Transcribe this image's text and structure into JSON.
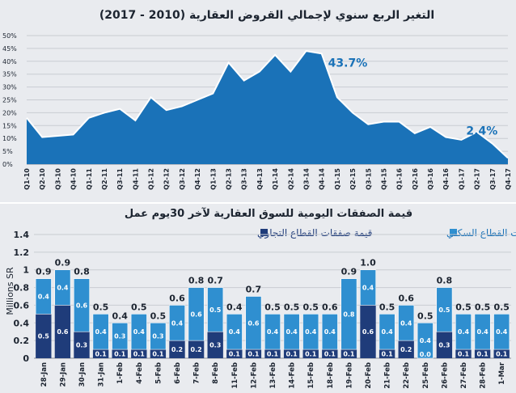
{
  "chart_data": [
    {
      "type": "area",
      "title": "التغير الربع سنوي لإجمالي القروض العقارية (2010 - 2017)",
      "x": [
        "Q1-10",
        "Q2-10",
        "Q3-10",
        "Q4-10",
        "Q1-11",
        "Q2-11",
        "Q3-11",
        "Q4-11",
        "Q1-12",
        "Q2-12",
        "Q3-12",
        "Q4-12",
        "Q1-13",
        "Q2-13",
        "Q3-13",
        "Q4-13",
        "Q1-14",
        "Q2-14",
        "Q3-14",
        "Q4-14",
        "Q1-15",
        "Q2-15",
        "Q3-15",
        "Q4-15",
        "Q1-16",
        "Q2-16",
        "Q3-16",
        "Q4-16",
        "Q1-17",
        "Q2-17",
        "Q3-17",
        "Q4-17"
      ],
      "series": [
        {
          "values": [
            18,
            10.5,
            11,
            11.5,
            18,
            20,
            21.5,
            17,
            26,
            21,
            22.5,
            25,
            27.5,
            39.5,
            32.5,
            36,
            42.5,
            36,
            44,
            43,
            26,
            20,
            15.5,
            16.5,
            16.5,
            12,
            14.5,
            10.5,
            9.5,
            12.5,
            8,
            2.4
          ]
        }
      ],
      "annotations": [
        "43.7%",
        "2.4%"
      ],
      "ylim": [
        0,
        50
      ],
      "yticks": [
        "0%",
        "5%",
        "10%",
        "15%",
        "20%",
        "25%",
        "30%",
        "35%",
        "40%",
        "45%",
        "50%"
      ],
      "grid": true,
      "color": "#1a72b8"
    },
    {
      "type": "bar",
      "stacked": true,
      "title": "قيمة الصفقات اليومية للسوق العقارية لآخر 30يوم عمل",
      "ylabel": "Millions SR",
      "categories": [
        "28-Jan",
        "29-Jan",
        "30-Jan",
        "31-Jan",
        "1-Feb",
        "4-Feb",
        "5-Feb",
        "6-Feb",
        "7-Feb",
        "8-Feb",
        "11-Feb",
        "12-Feb",
        "13-Feb",
        "14-Feb",
        "15-Feb",
        "18-Feb",
        "19-Feb",
        "20-Feb",
        "21-Feb",
        "22-Feb",
        "25-Feb",
        "26-Feb",
        "27-Feb",
        "28-Feb",
        "1-Mar"
      ],
      "series": [
        {
          "name": "قيمة صفقات القطاع التجاري",
          "color": "#1f3c7a",
          "values": [
            0.5,
            0.6,
            0.3,
            0.1,
            0.1,
            0.1,
            0.1,
            0.2,
            0.2,
            0.3,
            0.1,
            0.1,
            0.1,
            0.1,
            0.1,
            0.1,
            0.1,
            0.6,
            0.1,
            0.2,
            0.0,
            0.3,
            0.1,
            0.1,
            0.1
          ]
        },
        {
          "name": "قيمة صفقات القطاع السكني",
          "color": "#2f8fd0",
          "values": [
            0.4,
            0.4,
            0.6,
            0.4,
            0.3,
            0.4,
            0.3,
            0.4,
            0.6,
            0.5,
            0.4,
            0.6,
            0.4,
            0.4,
            0.4,
            0.4,
            0.8,
            0.4,
            0.4,
            0.4,
            0.4,
            0.5,
            0.4,
            0.4,
            0.4
          ]
        }
      ],
      "totals": [
        "0.9",
        "0.9",
        "0.8",
        "0.5",
        "0.4",
        "0.5",
        "0.5",
        "0.6",
        "0.8",
        "0.7",
        "0.4",
        "0.7",
        "0.5",
        "0.5",
        "0.5",
        "0.6",
        "0.9",
        "1.0",
        "0.5",
        "0.6",
        "0.5",
        "0.8",
        "0.5",
        "0.5",
        "0.5"
      ],
      "ylim": [
        0,
        1.4
      ],
      "yticks": [
        "0",
        "0.2",
        "0.4",
        "0.6",
        "0.8",
        "1",
        "1.2",
        "1.4"
      ],
      "legend_position": "top",
      "grid": true
    }
  ]
}
